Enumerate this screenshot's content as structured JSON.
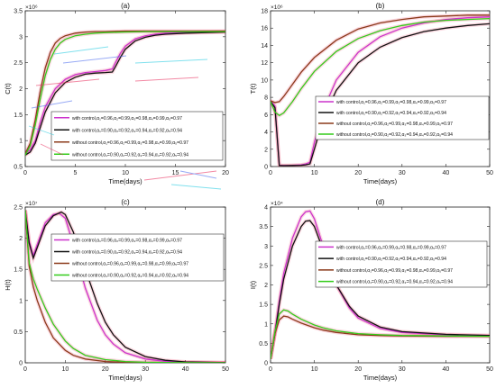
{
  "colors": {
    "magenta": "#cc33cc",
    "black": "#111111",
    "brown": "#8b3a1a",
    "green": "#33cc1a",
    "overlay_pink": "#e82a5a",
    "overlay_cyan": "#19c8e0",
    "overlay_blue": "#4466ee"
  },
  "chart_data": [
    {
      "type": "line",
      "panel_label": "(a)",
      "xlabel": "Time(days)",
      "ylabel": "C(t)",
      "exponent_label": "×10⁶",
      "xlim": [
        0,
        20
      ],
      "ylim": [
        0.5,
        3.5
      ],
      "xticks": [
        "0",
        "5",
        "10",
        "15",
        "20"
      ],
      "yticks": [
        "0.5",
        "1",
        "1.5",
        "2",
        "2.5",
        "3",
        "3.5"
      ],
      "legend_placement": "lower-right",
      "series": [
        {
          "name": "with control,α₁=0.96,α₂=0.99,α₃=0.98,α₄=0.99,α₅=0.97",
          "color": "magenta",
          "x": [
            0,
            0.5,
            1,
            1.5,
            2,
            3,
            4,
            5,
            6,
            7,
            8,
            8.7,
            9,
            9.5,
            10,
            11,
            12,
            13,
            14,
            16,
            18,
            20
          ],
          "y": [
            0.75,
            0.82,
            1.0,
            1.35,
            1.65,
            2.0,
            2.18,
            2.27,
            2.31,
            2.33,
            2.35,
            2.38,
            2.5,
            2.68,
            2.82,
            2.96,
            3.02,
            3.05,
            3.07,
            3.08,
            3.09,
            3.1
          ]
        },
        {
          "name": "with control,α₁=0.90,α₂=0.92,α₃=0.94,α₄=0.92,α₅=0.94",
          "color": "black",
          "x": [
            0,
            0.5,
            1,
            1.5,
            2,
            3,
            4,
            5,
            6,
            7,
            8,
            8.7,
            9,
            9.5,
            10,
            11,
            12,
            13,
            14,
            16,
            18,
            20
          ],
          "y": [
            0.72,
            0.78,
            0.95,
            1.25,
            1.55,
            1.92,
            2.12,
            2.22,
            2.28,
            2.3,
            2.31,
            2.32,
            2.42,
            2.6,
            2.76,
            2.92,
            2.99,
            3.03,
            3.05,
            3.07,
            3.08,
            3.09
          ]
        },
        {
          "name": "without control,α₁=0.96,α₂=0.99,α₃=0.98,α₄=0.99,α₅=0.97",
          "color": "brown",
          "x": [
            0,
            0.5,
            1,
            1.5,
            2,
            2.5,
            3,
            3.5,
            4,
            5,
            6,
            7,
            8,
            10,
            12,
            15,
            20
          ],
          "y": [
            0.75,
            0.95,
            1.4,
            1.95,
            2.4,
            2.7,
            2.88,
            2.97,
            3.02,
            3.07,
            3.09,
            3.1,
            3.1,
            3.11,
            3.11,
            3.11,
            3.11
          ]
        },
        {
          "name": "without control,α₁=0.90,α₂=0.92,α₃=0.94,α₄=0.92,α₅=0.94",
          "color": "green",
          "x": [
            0,
            0.5,
            1,
            1.5,
            2,
            2.5,
            3,
            3.5,
            4,
            5,
            6,
            7,
            8,
            10,
            12,
            15,
            20
          ],
          "y": [
            0.72,
            0.9,
            1.3,
            1.8,
            2.25,
            2.56,
            2.76,
            2.88,
            2.95,
            3.02,
            3.05,
            3.07,
            3.08,
            3.09,
            3.1,
            3.1,
            3.1
          ]
        }
      ]
    },
    {
      "type": "line",
      "panel_label": "(b)",
      "xlabel": "Time(days)",
      "ylabel": "T(t)",
      "exponent_label": "×10⁶",
      "xlim": [
        0,
        50
      ],
      "ylim": [
        0,
        18
      ],
      "xticks": [
        "0",
        "10",
        "20",
        "30",
        "40",
        "50"
      ],
      "yticks": [
        "0",
        "2",
        "4",
        "6",
        "8",
        "10",
        "12",
        "14",
        "16",
        "18"
      ],
      "legend_placement": "center",
      "series": [
        {
          "name": "with control,α₁=0.96,α₂=0.99,α₃=0.98,α₄=0.99,α₅=0.97",
          "color": "magenta",
          "x": [
            0,
            1,
            2,
            3,
            5,
            7,
            8,
            9,
            10,
            12,
            15,
            20,
            25,
            30,
            35,
            40,
            45,
            50
          ],
          "y": [
            7.6,
            7.0,
            0.15,
            0.12,
            0.15,
            0.2,
            0.3,
            0.5,
            2.8,
            6.5,
            10.0,
            13.2,
            15.0,
            16.0,
            16.6,
            17.0,
            17.2,
            17.3
          ]
        },
        {
          "name": "with control,α₁=0.90,α₂=0.92,α₃=0.94,α₄=0.92,α₅=0.94",
          "color": "black",
          "x": [
            0,
            1,
            2,
            3,
            5,
            7,
            8,
            9,
            10,
            12,
            15,
            20,
            25,
            30,
            35,
            40,
            45,
            50
          ],
          "y": [
            7.5,
            6.8,
            0.12,
            0.1,
            0.12,
            0.15,
            0.2,
            0.3,
            2.0,
            5.5,
            8.8,
            12.0,
            13.8,
            14.9,
            15.6,
            16.0,
            16.3,
            16.5
          ]
        },
        {
          "name": "without control,α₁=0.96,α₂=0.99,α₃=0.98,α₄=0.99,α₅=0.97",
          "color": "brown",
          "x": [
            0,
            1,
            2,
            3,
            5,
            7,
            10,
            15,
            20,
            25,
            30,
            35,
            40,
            45,
            50
          ],
          "y": [
            7.6,
            7.4,
            7.5,
            8.1,
            9.5,
            10.9,
            12.6,
            14.6,
            15.9,
            16.6,
            17.0,
            17.3,
            17.4,
            17.5,
            17.5
          ]
        },
        {
          "name": "without control,α₁=0.90,α₂=0.92,α₃=0.94,α₄=0.92,α₅=0.94",
          "color": "green",
          "x": [
            0,
            1,
            2,
            3,
            5,
            7,
            10,
            15,
            20,
            25,
            30,
            35,
            40,
            45,
            50
          ],
          "y": [
            7.5,
            6.3,
            5.9,
            6.2,
            7.5,
            9.0,
            11.0,
            13.3,
            14.8,
            15.7,
            16.3,
            16.7,
            16.9,
            17.0,
            17.1
          ]
        }
      ]
    },
    {
      "type": "line",
      "panel_label": "(c)",
      "xlabel": "Time(days)",
      "ylabel": "H(t)",
      "exponent_label": "×10⁷",
      "xlim": [
        0,
        50
      ],
      "ylim": [
        0,
        2.5
      ],
      "xticks": [
        "0",
        "10",
        "20",
        "30",
        "40",
        "50"
      ],
      "yticks": [
        "0",
        "0.5",
        "1",
        "1.5",
        "2",
        "2.5"
      ],
      "legend_placement": "top-right",
      "series": [
        {
          "name": "with control,α₁=0.96,α₂=0.99,α₃=0.98,α₄=0.99,α₅=0.97",
          "color": "magenta",
          "x": [
            0,
            1,
            2,
            3,
            5,
            7,
            8.5,
            10,
            12,
            15,
            18,
            20,
            22,
            25,
            30,
            35,
            40,
            50
          ],
          "y": [
            2.45,
            1.95,
            1.72,
            1.9,
            2.25,
            2.38,
            2.4,
            2.32,
            1.9,
            1.2,
            0.68,
            0.45,
            0.3,
            0.16,
            0.06,
            0.025,
            0.01,
            0.002
          ]
        },
        {
          "name": "with control,α₁=0.90,α₂=0.92,α₃=0.94,α₄=0.92,α₅=0.94",
          "color": "black",
          "x": [
            0,
            1,
            2,
            3,
            5,
            7,
            9,
            10,
            12,
            15,
            18,
            20,
            22,
            25,
            30,
            35,
            40,
            50
          ],
          "y": [
            2.45,
            1.92,
            1.68,
            1.85,
            2.2,
            2.36,
            2.42,
            2.38,
            2.1,
            1.5,
            0.95,
            0.65,
            0.45,
            0.25,
            0.1,
            0.04,
            0.015,
            0.003
          ]
        },
        {
          "name": "without control,α₁=0.96,α₂=0.99,α₃=0.98,α₄=0.99,α₅=0.97",
          "color": "brown",
          "x": [
            0,
            1,
            2,
            3,
            5,
            7,
            10,
            12,
            15,
            20,
            25,
            30,
            40,
            50
          ],
          "y": [
            2.45,
            1.55,
            1.22,
            1.0,
            0.65,
            0.4,
            0.2,
            0.12,
            0.06,
            0.02,
            0.007,
            0.003,
            0.001,
            0.0
          ]
        },
        {
          "name": "without control,α₁=0.90,α₂=0.92,α₃=0.94,α₄=0.92,α₅=0.94",
          "color": "green",
          "x": [
            0,
            1,
            2,
            3,
            5,
            7,
            10,
            12,
            15,
            20,
            25,
            30,
            40,
            50
          ],
          "y": [
            2.45,
            1.6,
            1.35,
            1.18,
            0.88,
            0.62,
            0.35,
            0.23,
            0.12,
            0.05,
            0.02,
            0.008,
            0.002,
            0.0
          ]
        }
      ]
    },
    {
      "type": "line",
      "panel_label": "(d)",
      "xlabel": "Time(days)",
      "ylabel": "I(t)",
      "exponent_label": "×10⁴",
      "xlim": [
        0,
        50
      ],
      "ylim": [
        0,
        4
      ],
      "xticks": [
        "0",
        "10",
        "20",
        "30",
        "40",
        "50"
      ],
      "yticks": [
        "0",
        "0.5",
        "1",
        "1.5",
        "2",
        "2.5",
        "3",
        "3.5",
        "4"
      ],
      "legend_placement": "top-right",
      "series": [
        {
          "name": "with control,α₁=0.96,α₂=0.99,α₃=0.98,α₄=0.99,α₅=0.97",
          "color": "magenta",
          "x": [
            0,
            1,
            2,
            3,
            5,
            7,
            8,
            9,
            10,
            12,
            15,
            18,
            20,
            25,
            30,
            40,
            50
          ],
          "y": [
            0.1,
            0.8,
            1.6,
            2.3,
            3.2,
            3.75,
            3.88,
            3.9,
            3.7,
            3.0,
            2.0,
            1.4,
            1.15,
            0.88,
            0.78,
            0.72,
            0.7
          ]
        },
        {
          "name": "with control,α₁=0.90,α₂=0.92,α₃=0.94,α₄=0.92,α₅=0.94",
          "color": "black",
          "x": [
            0,
            1,
            2,
            3,
            5,
            7,
            8,
            9,
            10,
            12,
            15,
            18,
            20,
            25,
            30,
            40,
            50
          ],
          "y": [
            0.1,
            0.75,
            1.5,
            2.15,
            3.0,
            3.5,
            3.64,
            3.65,
            3.5,
            2.9,
            2.0,
            1.45,
            1.2,
            0.92,
            0.8,
            0.73,
            0.7
          ]
        },
        {
          "name": "without control,α₁=0.96,α₂=0.99,α₃=0.98,α₄=0.99,α₅=0.97",
          "color": "brown",
          "x": [
            0,
            1,
            2,
            3,
            4,
            5,
            7,
            10,
            12,
            15,
            20,
            25,
            30,
            40,
            50
          ],
          "y": [
            0.1,
            0.75,
            1.1,
            1.2,
            1.18,
            1.12,
            1.02,
            0.9,
            0.84,
            0.78,
            0.72,
            0.7,
            0.69,
            0.68,
            0.68
          ]
        },
        {
          "name": "without control,α₁=0.90,α₂=0.92,α₃=0.94,α₄=0.92,α₅=0.94",
          "color": "green",
          "x": [
            0,
            1,
            2,
            3,
            4,
            5,
            7,
            10,
            12,
            15,
            20,
            25,
            30,
            40,
            50
          ],
          "y": [
            0.1,
            0.8,
            1.25,
            1.36,
            1.33,
            1.25,
            1.12,
            0.97,
            0.9,
            0.82,
            0.75,
            0.72,
            0.7,
            0.69,
            0.68
          ]
        }
      ]
    }
  ]
}
